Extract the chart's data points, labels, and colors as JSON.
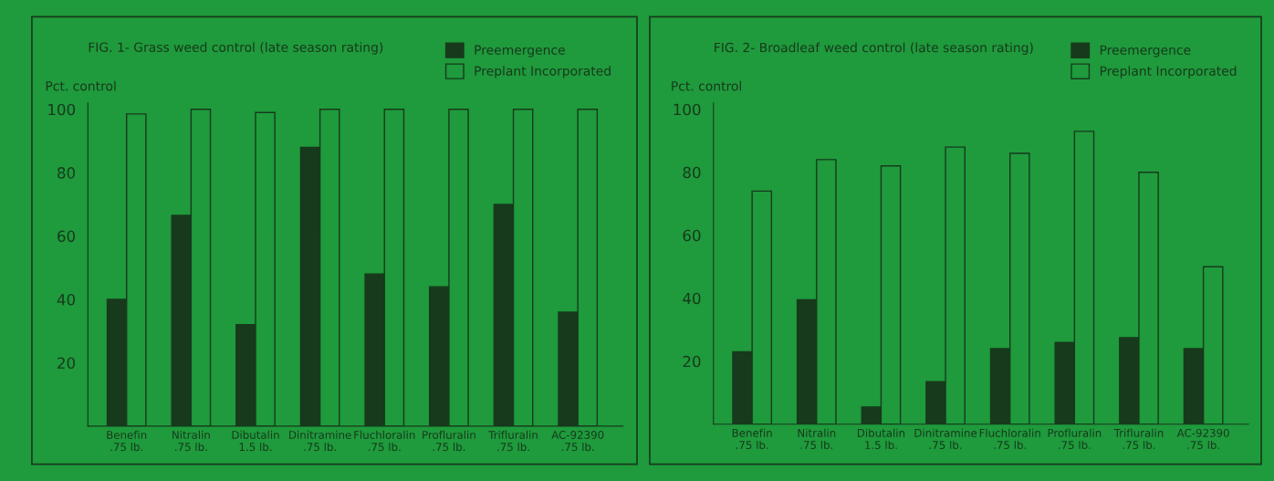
{
  "chart_data": [
    {
      "type": "bar",
      "title": "FIG. 1- Grass weed control (late season rating)",
      "ylabel": "Pct. control",
      "categories": [
        "Benefin\n.75 lb.",
        "Nitralin\n.75 lb.",
        "Dibutalin\n1.5 lb.",
        "Dinitramine\n.75 lb.",
        "Fluchloralin\n.75 lb.",
        "Profluralin\n.75 lb.",
        "Trifluralin\n.75 lb.",
        "AC-92390\n.75 lb."
      ],
      "series": [
        {
          "name": "Preemergence",
          "color": "#173a1c",
          "values": [
            40,
            66.5,
            32,
            88,
            48,
            44,
            70,
            36
          ]
        },
        {
          "name": "Preplant Incorporated",
          "color": "#1f9a3c",
          "values": [
            98.5,
            100,
            99,
            100,
            100,
            100,
            100,
            100
          ]
        }
      ],
      "ylim": [
        0,
        102
      ],
      "yticks": [
        20,
        40,
        60,
        80,
        100
      ],
      "grid": false,
      "legend": "top right"
    },
    {
      "type": "bar",
      "title": "FIG. 2- Broadleaf weed control (late season rating)",
      "ylabel": "Pct. control",
      "categories": [
        "Benefin\n.75 lb.",
        "Nitralin\n.75 lb.",
        "Dibutalin\n1.5 lb.",
        "Dinitramine\n.75 lb.",
        "Fluchloralin\n.75 lb.",
        "Profluralin\n.75 lb.",
        "Trifluralin\n.75 lb.",
        "AC-92390\n.75 lb."
      ],
      "series": [
        {
          "name": "Preemergence",
          "color": "#173a1c",
          "values": [
            23,
            39.5,
            5.5,
            13.5,
            24,
            26,
            27.5,
            24
          ]
        },
        {
          "name": "Preplant Incorporated",
          "color": "#1f9a3c",
          "values": [
            74,
            84,
            82,
            88,
            86,
            93,
            80,
            50
          ]
        }
      ],
      "ylim": [
        0,
        102
      ],
      "yticks": [
        20,
        40,
        60,
        80,
        100
      ],
      "grid": false,
      "legend": "top right"
    }
  ]
}
